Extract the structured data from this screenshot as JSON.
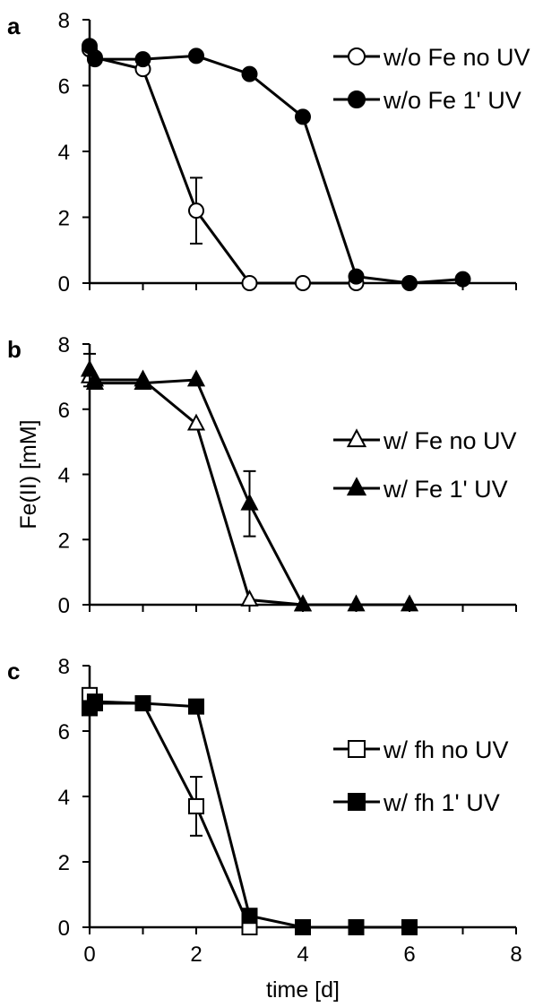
{
  "chart_data": [
    {
      "panel_label": "a",
      "type": "line",
      "xlim": [
        0,
        8
      ],
      "ylim": [
        0,
        8
      ],
      "yticks": [
        "0",
        "2",
        "4",
        "6",
        "8"
      ],
      "legend_position": "top-right",
      "series": [
        {
          "name": "w/o Fe no UV",
          "marker": "circle",
          "fill": "open",
          "points": [
            [
              0,
              7.1
            ],
            [
              0.1,
              6.85
            ],
            [
              1,
              6.5
            ],
            [
              2,
              2.2
            ],
            [
              3,
              0.0
            ],
            [
              4,
              0.0
            ],
            [
              5,
              0.0
            ]
          ],
          "errors": [
            [
              2,
              1.0
            ]
          ]
        },
        {
          "name": "w/o Fe 1' UV",
          "marker": "circle",
          "fill": "filled",
          "points": [
            [
              0,
              7.2
            ],
            [
              0.1,
              6.8
            ],
            [
              1,
              6.8
            ],
            [
              2,
              6.9
            ],
            [
              3,
              6.35
            ],
            [
              4,
              5.05
            ],
            [
              5,
              0.2
            ],
            [
              6,
              0.0
            ],
            [
              7,
              0.12
            ]
          ],
          "errors": []
        }
      ]
    },
    {
      "panel_label": "b",
      "type": "line",
      "xlim": [
        0,
        8
      ],
      "ylim": [
        0,
        8
      ],
      "yticks": [
        "0",
        "2",
        "4",
        "6",
        "8"
      ],
      "ylabel": "Fe(II)   [mM]",
      "legend_position": "middle-right",
      "series": [
        {
          "name": "w/ Fe no UV",
          "marker": "triangle",
          "fill": "open",
          "points": [
            [
              0,
              7.0
            ],
            [
              0.1,
              6.9
            ],
            [
              1,
              6.9
            ],
            [
              2,
              5.55
            ],
            [
              3,
              0.15
            ],
            [
              4,
              0.0
            ]
          ],
          "errors": []
        },
        {
          "name": "w/ Fe 1' UV",
          "marker": "triangle",
          "fill": "filled",
          "points": [
            [
              0,
              7.2
            ],
            [
              0.1,
              6.8
            ],
            [
              1,
              6.8
            ],
            [
              2,
              6.9
            ],
            [
              3,
              3.1
            ],
            [
              4,
              0.0
            ],
            [
              5,
              0.0
            ],
            [
              6,
              0.0
            ]
          ],
          "errors": [
            [
              3,
              1.0
            ],
            [
              0,
              0.5
            ]
          ]
        }
      ]
    },
    {
      "panel_label": "c",
      "type": "line",
      "xlim": [
        0,
        8
      ],
      "ylim": [
        0,
        8
      ],
      "yticks": [
        "0",
        "2",
        "4",
        "6",
        "8"
      ],
      "xticks": [
        "0",
        "2",
        "4",
        "6",
        "8"
      ],
      "xlabel": "time [d]",
      "legend_position": "middle-right",
      "series": [
        {
          "name": "w/ fh no UV",
          "marker": "square",
          "fill": "open",
          "points": [
            [
              0,
              7.1
            ],
            [
              0.1,
              6.85
            ],
            [
              1,
              6.85
            ],
            [
              2,
              3.7
            ],
            [
              3,
              0.0
            ]
          ],
          "errors": [
            [
              2,
              0.9
            ]
          ]
        },
        {
          "name": "w/ fh 1' UV",
          "marker": "square",
          "fill": "filled",
          "points": [
            [
              0,
              6.7
            ],
            [
              0.1,
              6.9
            ],
            [
              1,
              6.85
            ],
            [
              2,
              6.75
            ],
            [
              3,
              0.35
            ],
            [
              4,
              0.0
            ],
            [
              5,
              0.0
            ],
            [
              6,
              0.0
            ]
          ],
          "errors": []
        }
      ]
    }
  ]
}
